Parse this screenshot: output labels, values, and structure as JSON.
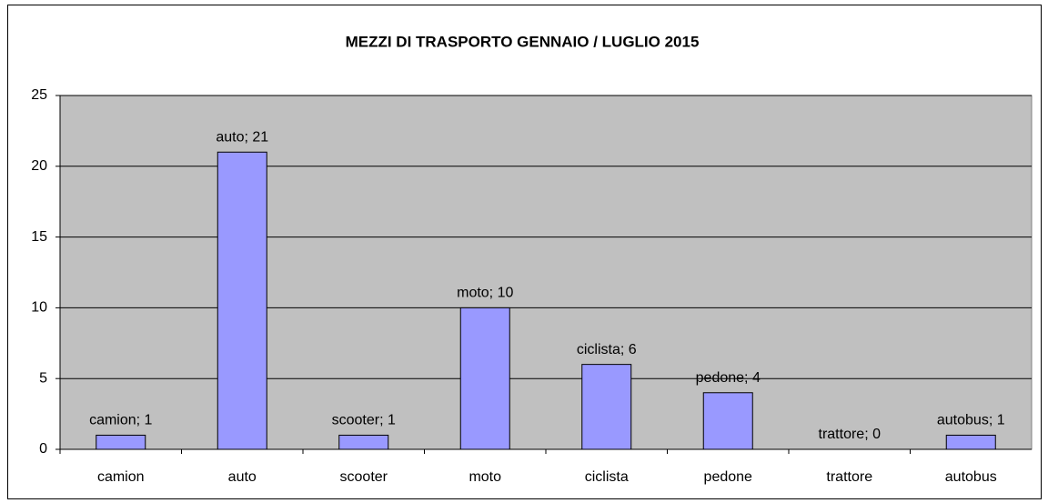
{
  "chart_data": {
    "type": "bar",
    "title": "MEZZI DI TRASPORTO GENNAIO / LUGLIO 2015",
    "categories": [
      "camion",
      "auto",
      "scooter",
      "moto",
      "ciclista",
      "pedone",
      "trattore",
      "autobus"
    ],
    "values": [
      1,
      21,
      1,
      10,
      6,
      4,
      0,
      1
    ],
    "value_labels": [
      "camion; 1",
      "auto; 21",
      "scooter; 1",
      "moto; 10",
      "ciclista; 6",
      "pedone; 4",
      "trattore; 0",
      "autobus; 1"
    ],
    "color": "#9999ff",
    "ylim": [
      0,
      25
    ],
    "yticks": [
      0,
      5,
      10,
      15,
      20,
      25
    ],
    "grid": true
  }
}
